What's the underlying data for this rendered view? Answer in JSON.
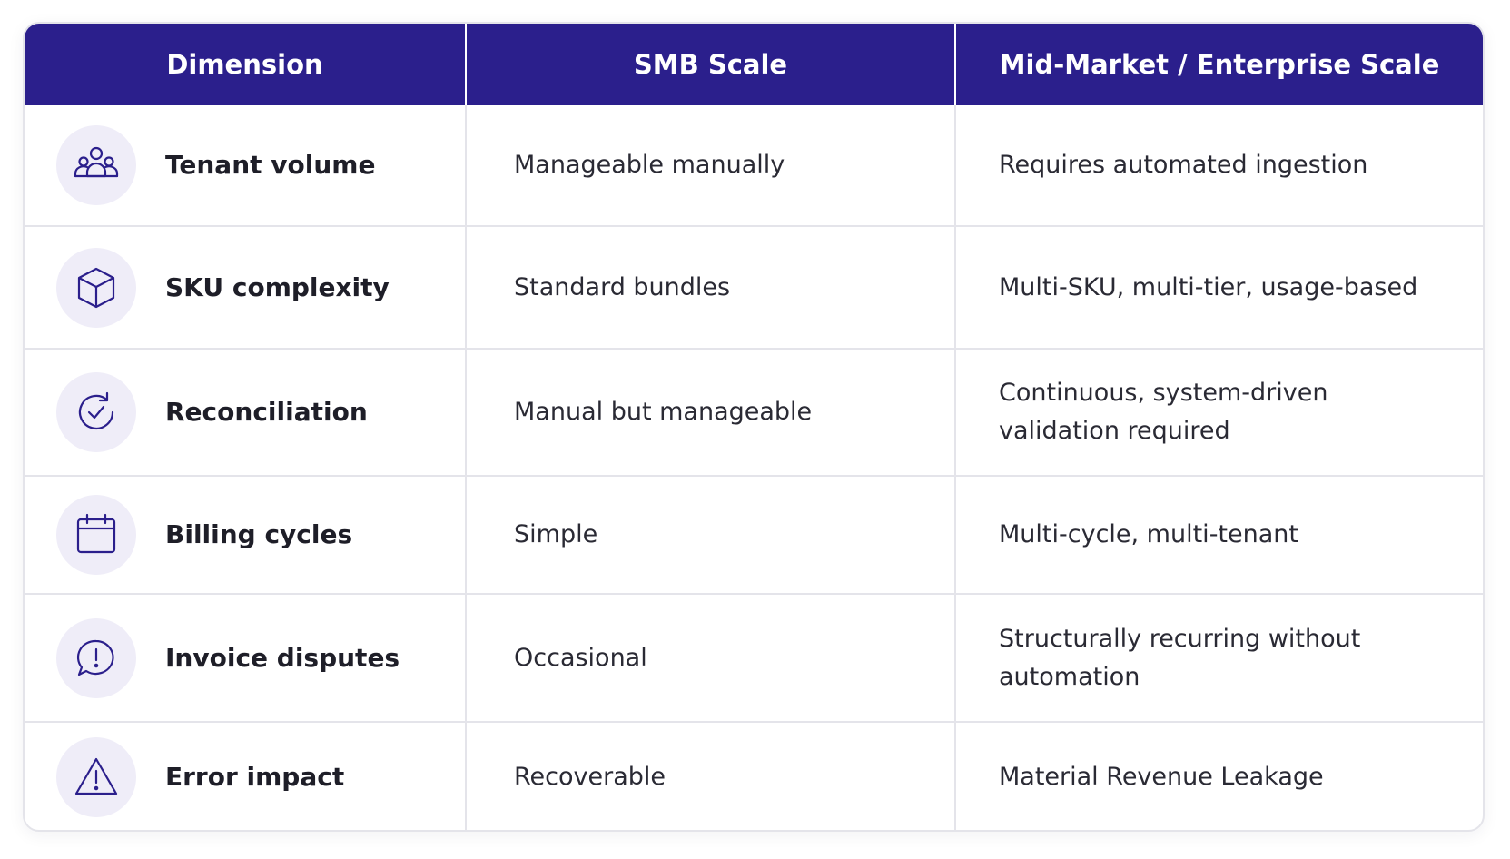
{
  "headers": {
    "dimension": "Dimension",
    "smb": "SMB Scale",
    "enterprise": "Mid-Market / Enterprise Scale"
  },
  "rows": [
    {
      "icon": "users-icon",
      "dimension": "Tenant volume",
      "smb": "Manageable manually",
      "enterprise": "Requires automated ingestion"
    },
    {
      "icon": "cube-icon",
      "dimension": "SKU complexity",
      "smb": "Standard bundles",
      "enterprise": "Multi-SKU, multi-tier, usage-based"
    },
    {
      "icon": "refresh-check-icon",
      "dimension": "Reconciliation",
      "smb": "Manual but manageable",
      "enterprise": "Continuous, system-driven validation required"
    },
    {
      "icon": "calendar-icon",
      "dimension": "Billing cycles",
      "smb": "Simple",
      "enterprise": "Multi-cycle, multi-tenant"
    },
    {
      "icon": "alert-bubble-icon",
      "dimension": "Invoice disputes",
      "smb": "Occasional",
      "enterprise": "Structurally recurring without automation"
    },
    {
      "icon": "warning-triangle-icon",
      "dimension": "Error impact",
      "smb": "Recoverable",
      "enterprise": "Material Revenue Leakage"
    }
  ],
  "colors": {
    "header_background": "#2b1f8c",
    "header_text": "#ffffff",
    "icon_stroke": "#2b1f8c",
    "icon_circle": "#efedf8",
    "border": "#e4e4ea"
  }
}
